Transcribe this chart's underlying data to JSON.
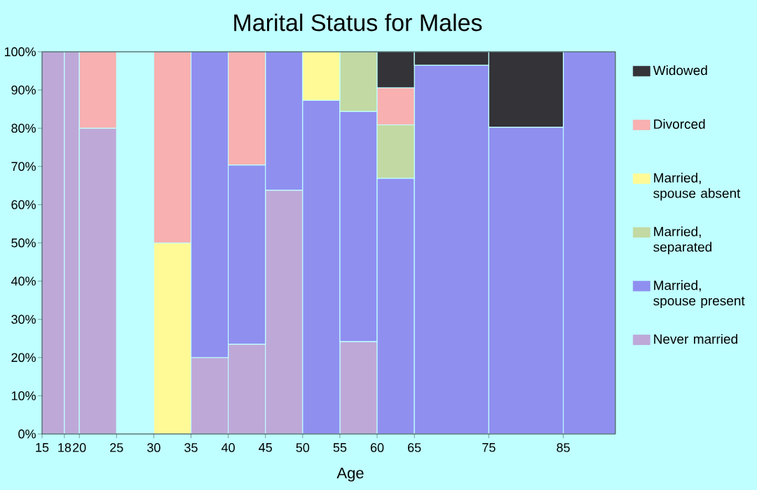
{
  "chart_data": {
    "type": "bar",
    "stacked": true,
    "title": "Marital Status for Males",
    "xlabel": "Age",
    "x": [
      16.5,
      19,
      22.5,
      27.5,
      32.5,
      37.5,
      42.5,
      47.5,
      52.5,
      57.5,
      62.5,
      70,
      80,
      88.5
    ],
    "xlim": [
      15,
      92
    ],
    "xticks": [
      15,
      18,
      20,
      25,
      30,
      35,
      40,
      45,
      50,
      55,
      60,
      65,
      75,
      85
    ],
    "ylim": [
      0,
      100
    ],
    "yticks": [
      {
        "value": 0,
        "label": "0%"
      },
      {
        "value": 10,
        "label": "10%"
      },
      {
        "value": 20,
        "label": "20%"
      },
      {
        "value": 30,
        "label": "30%"
      },
      {
        "value": 40,
        "label": "40%"
      },
      {
        "value": 50,
        "label": "50%"
      },
      {
        "value": 60,
        "label": "60%"
      },
      {
        "value": 70,
        "label": "70%"
      },
      {
        "value": 80,
        "label": "80%"
      },
      {
        "value": 90,
        "label": "90%"
      },
      {
        "value": 100,
        "label": "100%"
      }
    ],
    "legend": "right",
    "series": [
      {
        "name": "Never married",
        "color": "#bea8d8",
        "values": [
          100,
          100,
          80,
          0,
          0,
          20,
          23.5,
          63.8,
          0,
          24.2,
          0,
          0,
          0,
          0
        ]
      },
      {
        "name": "Married, spouse present",
        "color": "#8f8ff0",
        "values": [
          0,
          0,
          0,
          0,
          0,
          80,
          46.9,
          36.2,
          87.3,
          60.2,
          66.9,
          96.5,
          80.3,
          100
        ]
      },
      {
        "name": "Married, separated",
        "color": "#c2d9a3",
        "values": [
          0,
          0,
          0,
          0,
          0,
          0,
          0,
          0,
          0,
          15.6,
          14,
          0,
          0,
          0
        ]
      },
      {
        "name": "Married, spouse absent",
        "color": "#fffa96",
        "values": [
          0,
          0,
          0,
          0,
          50,
          0,
          0,
          0,
          12.7,
          0,
          0,
          0,
          0,
          0
        ]
      },
      {
        "name": "Divorced",
        "color": "#f8b0b0",
        "values": [
          0,
          0,
          20,
          0,
          50,
          0,
          29.6,
          0,
          0,
          0,
          9.7,
          0,
          0,
          0
        ]
      },
      {
        "name": "Widowed",
        "color": "#333338",
        "values": [
          0,
          0,
          0,
          0,
          0,
          0,
          0,
          0,
          0,
          0,
          9.4,
          3.5,
          19.7,
          0
        ]
      }
    ]
  }
}
